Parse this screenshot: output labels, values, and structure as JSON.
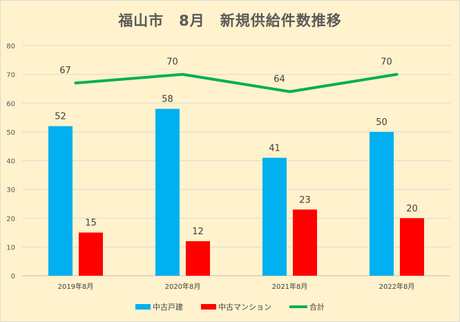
{
  "chart_data": {
    "type": "bar",
    "title": "福山市　8月　新規供給件数推移",
    "categories": [
      "2019年8月",
      "2020年8月",
      "2021年8月",
      "2022年8月"
    ],
    "series": [
      {
        "name": "中古戸建",
        "kind": "bar",
        "color": "#00b0f0",
        "values": [
          52,
          58,
          41,
          50
        ]
      },
      {
        "name": "中古マンション",
        "kind": "bar",
        "color": "#ff0000",
        "values": [
          15,
          12,
          23,
          20
        ]
      },
      {
        "name": "合計",
        "kind": "line",
        "color": "#00b050",
        "values": [
          67,
          70,
          64,
          70
        ]
      }
    ],
    "yticks": [
      0,
      10,
      20,
      30,
      40,
      50,
      60,
      70,
      80
    ],
    "ylim": [
      0,
      80
    ],
    "grid": true,
    "legend_position": "bottom"
  }
}
